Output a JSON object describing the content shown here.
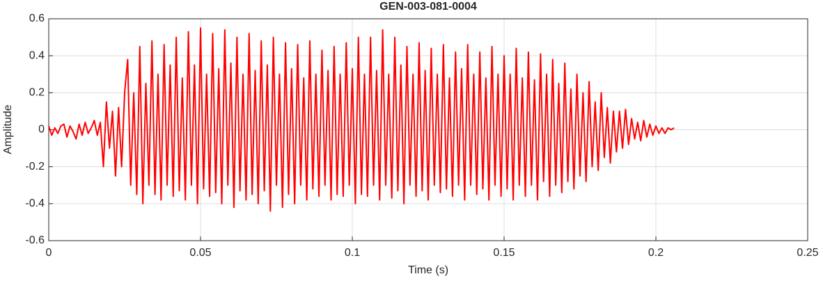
{
  "chart_data": {
    "type": "line",
    "title": "GEN-003-081-0004",
    "x_label": "Time (s)",
    "y_label": "Amplitude",
    "xlim": [
      0,
      0.25
    ],
    "xticks": [
      0,
      0.05,
      0.1,
      0.15,
      0.2,
      0.25
    ],
    "ylim": [
      -0.6,
      0.6
    ],
    "yticks": [
      -0.6,
      -0.4,
      -0.2,
      0,
      0.2,
      0.4,
      0.6
    ],
    "grid": true,
    "x": [
      0,
      0.001,
      0.002,
      0.003,
      0.004,
      0.005,
      0.006,
      0.007,
      0.008,
      0.009,
      0.01,
      0.011,
      0.012,
      0.013,
      0.014,
      0.015,
      0.016,
      0.017,
      0.018,
      0.019,
      0.02,
      0.021,
      0.022,
      0.023,
      0.024,
      0.025,
      0.026,
      0.027,
      0.028,
      0.029,
      0.03,
      0.031,
      0.032,
      0.033,
      0.034,
      0.035,
      0.036,
      0.037,
      0.038,
      0.039,
      0.04,
      0.041,
      0.042,
      0.043,
      0.044,
      0.045,
      0.046,
      0.047,
      0.048,
      0.049,
      0.05,
      0.051,
      0.052,
      0.053,
      0.054,
      0.055,
      0.056,
      0.057,
      0.058,
      0.059,
      0.06,
      0.061,
      0.062,
      0.063,
      0.064,
      0.065,
      0.066,
      0.067,
      0.068,
      0.069,
      0.07,
      0.071,
      0.072,
      0.073,
      0.074,
      0.075,
      0.076,
      0.077,
      0.078,
      0.079,
      0.08,
      0.081,
      0.082,
      0.083,
      0.084,
      0.085,
      0.086,
      0.087,
      0.088,
      0.089,
      0.09,
      0.091,
      0.092,
      0.093,
      0.094,
      0.095,
      0.096,
      0.097,
      0.098,
      0.099,
      0.1,
      0.101,
      0.102,
      0.103,
      0.104,
      0.105,
      0.106,
      0.107,
      0.108,
      0.109,
      0.11,
      0.111,
      0.112,
      0.113,
      0.114,
      0.115,
      0.116,
      0.117,
      0.118,
      0.119,
      0.12,
      0.121,
      0.122,
      0.123,
      0.124,
      0.125,
      0.126,
      0.127,
      0.128,
      0.129,
      0.13,
      0.131,
      0.132,
      0.133,
      0.134,
      0.135,
      0.136,
      0.137,
      0.138,
      0.139,
      0.14,
      0.141,
      0.142,
      0.143,
      0.144,
      0.145,
      0.146,
      0.147,
      0.148,
      0.149,
      0.15,
      0.151,
      0.152,
      0.153,
      0.154,
      0.155,
      0.156,
      0.157,
      0.158,
      0.159,
      0.16,
      0.161,
      0.162,
      0.163,
      0.164,
      0.165,
      0.166,
      0.167,
      0.168,
      0.169,
      0.17,
      0.171,
      0.172,
      0.173,
      0.174,
      0.175,
      0.176,
      0.177,
      0.178,
      0.179,
      0.18,
      0.181,
      0.182,
      0.183,
      0.184,
      0.185,
      0.186,
      0.187,
      0.188,
      0.189,
      0.19,
      0.191,
      0.192,
      0.193,
      0.194,
      0.195,
      0.196,
      0.197,
      0.198,
      0.199,
      0.2,
      0.201,
      0.202,
      0.203,
      0.204,
      0.205,
      0.206
    ],
    "series": [
      {
        "color": "#ff0000",
        "values": [
          0.02,
          -0.03,
          0.01,
          -0.02,
          0.02,
          0.03,
          -0.04,
          0.02,
          -0.01,
          -0.05,
          0.03,
          -0.03,
          0.04,
          -0.02,
          0.01,
          0.05,
          -0.03,
          0.04,
          -0.2,
          0.15,
          -0.1,
          0.1,
          -0.25,
          0.12,
          -0.2,
          0.2,
          0.38,
          -0.3,
          0.2,
          -0.35,
          0.45,
          -0.4,
          0.25,
          -0.3,
          0.48,
          -0.35,
          0.3,
          -0.38,
          0.46,
          -0.3,
          0.35,
          -0.36,
          0.5,
          -0.33,
          0.28,
          -0.38,
          0.53,
          -0.3,
          0.35,
          -0.4,
          0.55,
          -0.32,
          0.3,
          -0.36,
          0.52,
          -0.34,
          0.33,
          -0.4,
          0.54,
          -0.3,
          0.36,
          -0.42,
          0.5,
          -0.33,
          0.3,
          -0.38,
          0.52,
          -0.35,
          0.32,
          -0.4,
          0.48,
          -0.33,
          0.35,
          -0.44,
          0.5,
          -0.3,
          0.3,
          -0.42,
          0.47,
          -0.35,
          0.33,
          -0.4,
          0.46,
          -0.3,
          0.28,
          -0.38,
          0.48,
          -0.32,
          0.3,
          -0.36,
          0.43,
          -0.3,
          0.32,
          -0.38,
          0.45,
          -0.35,
          0.3,
          -0.36,
          0.47,
          -0.3,
          0.33,
          -0.4,
          0.5,
          -0.35,
          0.3,
          -0.36,
          0.5,
          -0.3,
          0.32,
          -0.38,
          0.54,
          -0.3,
          0.3,
          -0.37,
          0.5,
          -0.33,
          0.35,
          -0.4,
          0.45,
          -0.3,
          0.3,
          -0.36,
          0.47,
          -0.33,
          0.32,
          -0.38,
          0.44,
          -0.3,
          0.3,
          -0.34,
          0.46,
          -0.32,
          0.28,
          -0.36,
          0.42,
          -0.3,
          0.33,
          -0.38,
          0.46,
          -0.3,
          0.3,
          -0.35,
          0.42,
          -0.32,
          0.28,
          -0.38,
          0.45,
          -0.3,
          0.3,
          -0.36,
          0.4,
          -0.32,
          0.3,
          -0.38,
          0.44,
          -0.3,
          0.28,
          -0.36,
          0.42,
          -0.3,
          0.27,
          -0.38,
          0.41,
          -0.28,
          0.3,
          -0.36,
          0.38,
          -0.3,
          0.25,
          -0.34,
          0.36,
          -0.28,
          0.22,
          -0.32,
          0.3,
          -0.25,
          0.2,
          -0.28,
          0.26,
          -0.2,
          0.15,
          -0.22,
          0.2,
          -0.15,
          0.12,
          -0.18,
          0.1,
          -0.12,
          0.1,
          -0.1,
          0.11,
          -0.08,
          0.06,
          -0.05,
          0.04,
          -0.06,
          0.05,
          -0.04,
          0.03,
          -0.03,
          0.02,
          -0.02,
          0.01,
          -0.02,
          0.01,
          0,
          0.01
        ]
      }
    ]
  }
}
